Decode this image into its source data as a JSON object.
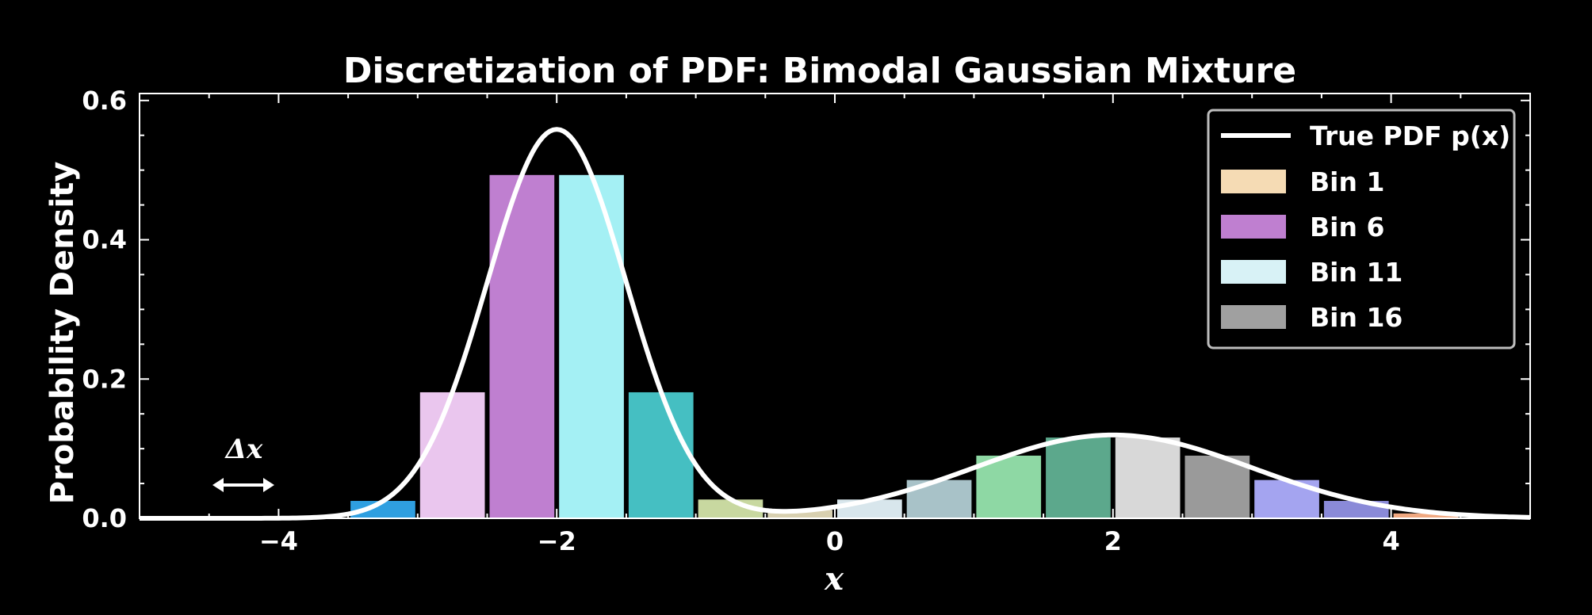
{
  "chart_data": {
    "type": "bar",
    "title": "Discretization of PDF: Bimodal Gaussian Mixture",
    "xlabel": "x",
    "ylabel": "Probability Density",
    "xlim": [
      -5,
      5
    ],
    "ylim": [
      0,
      0.61
    ],
    "x_ticks": [
      "−4",
      "−2",
      "0",
      "2",
      "4"
    ],
    "y_ticks": [
      "0.0",
      "0.2",
      "0.4",
      "0.6"
    ],
    "grid": false,
    "legend_position": "top-right",
    "bin_width": 0.5,
    "bins": [
      {
        "left": -3.5,
        "value": 0.025,
        "color": "#2f9fe0"
      },
      {
        "left": -3.0,
        "value": 0.181,
        "color": "#eac6ee"
      },
      {
        "left": -2.5,
        "value": 0.493,
        "color": "#bf7fd0"
      },
      {
        "left": -2.0,
        "value": 0.493,
        "color": "#a4f0f4"
      },
      {
        "left": -1.5,
        "value": 0.181,
        "color": "#45bfc2"
      },
      {
        "left": -1.0,
        "value": 0.027,
        "color": "#c8d8a0"
      },
      {
        "left": -0.5,
        "value": 0.012,
        "color": "#d8d0b0"
      },
      {
        "left": 0.0,
        "value": 0.027,
        "color": "#d8e6ec"
      },
      {
        "left": 0.5,
        "value": 0.055,
        "color": "#a8c2c8"
      },
      {
        "left": 1.0,
        "value": 0.09,
        "color": "#8ed8a4"
      },
      {
        "left": 1.5,
        "value": 0.116,
        "color": "#5ca88c"
      },
      {
        "left": 2.0,
        "value": 0.116,
        "color": "#d8d8d8"
      },
      {
        "left": 2.5,
        "value": 0.09,
        "color": "#9a9a9a"
      },
      {
        "left": 3.0,
        "value": 0.055,
        "color": "#a4a4f0"
      },
      {
        "left": 3.5,
        "value": 0.025,
        "color": "#8a8ad8"
      },
      {
        "left": 4.0,
        "value": 0.007,
        "color": "#f0a880"
      }
    ],
    "series": [
      {
        "name": "True PDF p(x)",
        "type": "line",
        "color": "#ffffff",
        "components": [
          {
            "weight": 0.7,
            "mean": -2,
            "sd": 0.5
          },
          {
            "weight": 0.3,
            "mean": 2,
            "sd": 1
          }
        ]
      }
    ],
    "legend": [
      {
        "label": "True PDF p(x)",
        "kind": "line",
        "color": "#ffffff"
      },
      {
        "label": "Bin 1",
        "kind": "patch",
        "color": "#f5dbb4"
      },
      {
        "label": "Bin 6",
        "kind": "patch",
        "color": "#bf7fd0"
      },
      {
        "label": "Bin 11",
        "kind": "patch",
        "color": "#d8f2f6"
      },
      {
        "label": "Bin 16",
        "kind": "patch",
        "color": "#a0a0a0"
      }
    ],
    "annotation": {
      "text": "Δx"
    }
  }
}
